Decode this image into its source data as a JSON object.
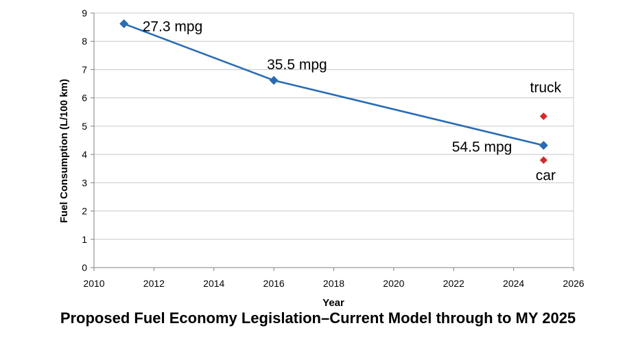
{
  "caption": "Proposed Fuel Economy Legislation–Current Model through to MY 2025",
  "chart_data": {
    "type": "line",
    "title": "",
    "xlabel": "Year",
    "ylabel": "Fuel Consumption (L/100 km)",
    "xlim": [
      2010,
      2026
    ],
    "ylim": [
      0,
      9
    ],
    "xticks": [
      2010,
      2012,
      2014,
      2016,
      2018,
      2020,
      2022,
      2024,
      2026
    ],
    "yticks": [
      0,
      1,
      2,
      3,
      4,
      5,
      6,
      7,
      8,
      9
    ],
    "grid": "horizontal",
    "series": [
      {
        "marker": "diamond",
        "color": "#2a6cb3",
        "line": true,
        "x": [
          2011,
          2016,
          2025
        ],
        "y": [
          8.62,
          6.62,
          4.32
        ],
        "labels": [
          "27.3 mpg",
          "35.5 mpg",
          "54.5 mpg"
        ]
      },
      {
        "marker": "diamond",
        "color": "#d42a2a",
        "line": false,
        "x": [
          2025,
          2025
        ],
        "y": [
          5.35,
          3.8
        ],
        "labels": [
          "truck",
          "car"
        ]
      }
    ]
  }
}
